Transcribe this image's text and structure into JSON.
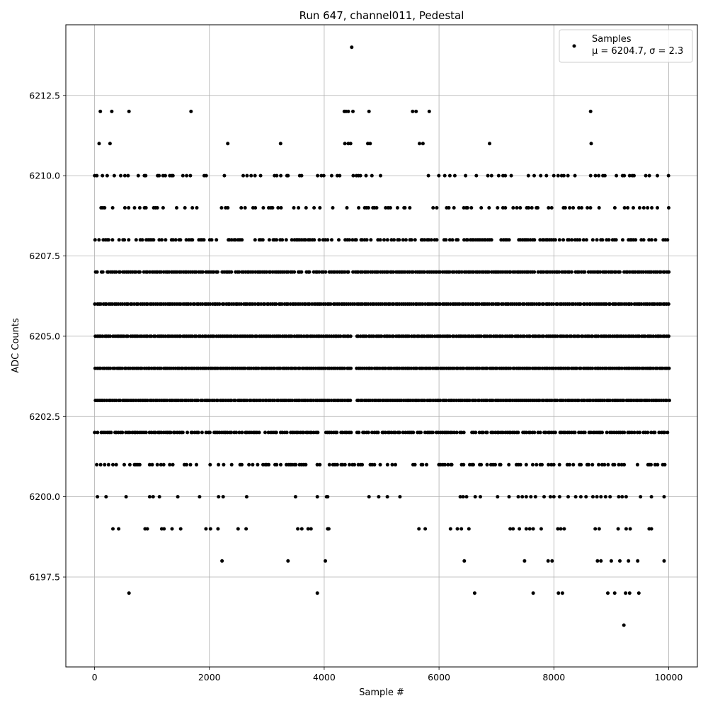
{
  "chart_data": {
    "type": "scatter",
    "title": "Run 647, channel011, Pedestal",
    "xlabel": "Sample #",
    "ylabel": "ADC Counts",
    "xlim": [
      -500,
      10500
    ],
    "ylim": [
      6194.7,
      6214.7
    ],
    "xticks": [
      0,
      2000,
      4000,
      6000,
      8000,
      10000
    ],
    "yticks": [
      6197.5,
      6200.0,
      6202.5,
      6205.0,
      6207.5,
      6210.0,
      6212.5
    ],
    "xtick_labels": [
      "0",
      "2000",
      "4000",
      "6000",
      "8000",
      "10000"
    ],
    "ytick_labels": [
      "6197.5",
      "6200.0",
      "6202.5",
      "6205.0",
      "6207.5",
      "6210.0",
      "6212.5"
    ],
    "grid": true,
    "marker_color": "#000000",
    "legend": {
      "placement": "top-right",
      "title_line": "Samples",
      "stats_line": "μ = 6204.7, σ = 2.3"
    },
    "series": [
      {
        "name": "Samples",
        "mean": 6204.7,
        "std": 2.3,
        "n": 10000,
        "points": [
          [
            4480,
            6214
          ],
          [
            100,
            6212
          ],
          [
            300,
            6212
          ],
          [
            600,
            6212
          ],
          [
            1680,
            6212
          ],
          [
            4350,
            6212
          ],
          [
            4380,
            6212
          ],
          [
            4420,
            6212
          ],
          [
            4500,
            6212
          ],
          [
            4780,
            6212
          ],
          [
            5540,
            6212
          ],
          [
            5600,
            6212
          ],
          [
            5830,
            6212
          ],
          [
            8640,
            6212
          ],
          [
            80,
            6211
          ],
          [
            270,
            6211
          ],
          [
            2320,
            6211
          ],
          [
            3240,
            6211
          ],
          [
            4360,
            6211
          ],
          [
            4420,
            6211
          ],
          [
            4460,
            6211
          ],
          [
            4760,
            6211
          ],
          [
            4800,
            6211
          ],
          [
            5660,
            6211
          ],
          [
            5720,
            6211
          ],
          [
            6880,
            6211
          ],
          [
            8650,
            6211
          ],
          [
            600,
            6197
          ],
          [
            3880,
            6197
          ],
          [
            6620,
            6197
          ],
          [
            7640,
            6197
          ],
          [
            8080,
            6197
          ],
          [
            8150,
            6197
          ],
          [
            8940,
            6197
          ],
          [
            9060,
            6197
          ],
          [
            9250,
            6197
          ],
          [
            9320,
            6197
          ],
          [
            9480,
            6197
          ],
          [
            9220,
            6196
          ],
          [
            2220,
            6198
          ],
          [
            3370,
            6198
          ],
          [
            4020,
            6198
          ],
          [
            6440,
            6198
          ],
          [
            7490,
            6198
          ],
          [
            7900,
            6198
          ],
          [
            7970,
            6198
          ],
          [
            8760,
            6198
          ],
          [
            8820,
            6198
          ],
          [
            9000,
            6198
          ],
          [
            9150,
            6198
          ],
          [
            9300,
            6198
          ],
          [
            9460,
            6198
          ],
          [
            9920,
            6198
          ],
          [
            320,
            6199
          ],
          [
            420,
            6199
          ],
          [
            880,
            6199
          ],
          [
            920,
            6199
          ],
          [
            1170,
            6199
          ],
          [
            1210,
            6199
          ],
          [
            1350,
            6199
          ],
          [
            1500,
            6199
          ],
          [
            1940,
            6199
          ],
          [
            2020,
            6199
          ],
          [
            2150,
            6199
          ],
          [
            2500,
            6199
          ],
          [
            2640,
            6199
          ],
          [
            3540,
            6199
          ],
          [
            3610,
            6199
          ],
          [
            3720,
            6199
          ],
          [
            3770,
            6199
          ],
          [
            4060,
            6199
          ],
          [
            4080,
            6199
          ],
          [
            5650,
            6199
          ],
          [
            5760,
            6199
          ],
          [
            6200,
            6199
          ],
          [
            6320,
            6199
          ],
          [
            6390,
            6199
          ],
          [
            6520,
            6199
          ],
          [
            7240,
            6199
          ],
          [
            7290,
            6199
          ],
          [
            7400,
            6199
          ],
          [
            7520,
            6199
          ],
          [
            7580,
            6199
          ],
          [
            7640,
            6199
          ],
          [
            7780,
            6199
          ],
          [
            8070,
            6199
          ],
          [
            8120,
            6199
          ],
          [
            8180,
            6199
          ],
          [
            8720,
            6199
          ],
          [
            8790,
            6199
          ],
          [
            9120,
            6199
          ],
          [
            9260,
            6199
          ],
          [
            9330,
            6199
          ],
          [
            9660,
            6199
          ],
          [
            9700,
            6199
          ],
          [
            50,
            6200
          ],
          [
            200,
            6200
          ],
          [
            550,
            6200
          ],
          [
            960,
            6200
          ],
          [
            1020,
            6200
          ],
          [
            1130,
            6200
          ],
          [
            1450,
            6200
          ],
          [
            1830,
            6200
          ],
          [
            2160,
            6200
          ],
          [
            2240,
            6200
          ],
          [
            2650,
            6200
          ],
          [
            3500,
            6200
          ],
          [
            3880,
            6200
          ],
          [
            4040,
            6200
          ],
          [
            4060,
            6200
          ],
          [
            4780,
            6200
          ],
          [
            4950,
            6200
          ],
          [
            5100,
            6200
          ],
          [
            5320,
            6200
          ],
          [
            6370,
            6200
          ],
          [
            6420,
            6200
          ],
          [
            6480,
            6200
          ],
          [
            6630,
            6200
          ],
          [
            6720,
            6200
          ],
          [
            7020,
            6200
          ],
          [
            7220,
            6200
          ],
          [
            7380,
            6200
          ],
          [
            7450,
            6200
          ],
          [
            7520,
            6200
          ],
          [
            7600,
            6200
          ],
          [
            7680,
            6200
          ],
          [
            7830,
            6200
          ],
          [
            7940,
            6200
          ],
          [
            8000,
            6200
          ],
          [
            8100,
            6200
          ],
          [
            8250,
            6200
          ],
          [
            8380,
            6200
          ],
          [
            8470,
            6200
          ],
          [
            8560,
            6200
          ],
          [
            8680,
            6200
          ],
          [
            8750,
            6200
          ],
          [
            8820,
            6200
          ],
          [
            8900,
            6200
          ],
          [
            8980,
            6200
          ],
          [
            9130,
            6200
          ],
          [
            9190,
            6200
          ],
          [
            9260,
            6200
          ],
          [
            9510,
            6200
          ],
          [
            9700,
            6200
          ],
          [
            9920,
            6200
          ]
        ],
        "dense_rows": [
          {
            "y": 6201,
            "density": 0.45
          },
          {
            "y": 6202,
            "density": 0.85
          },
          {
            "y": 6203,
            "density": 1.0
          },
          {
            "y": 6204,
            "density": 1.0
          },
          {
            "y": 6205,
            "density": 1.0
          },
          {
            "y": 6206,
            "density": 1.0
          },
          {
            "y": 6207,
            "density": 0.95
          },
          {
            "y": 6208,
            "density": 0.6
          },
          {
            "y": 6209,
            "density": 0.3
          },
          {
            "y": 6210,
            "density": 0.28
          }
        ]
      }
    ]
  }
}
